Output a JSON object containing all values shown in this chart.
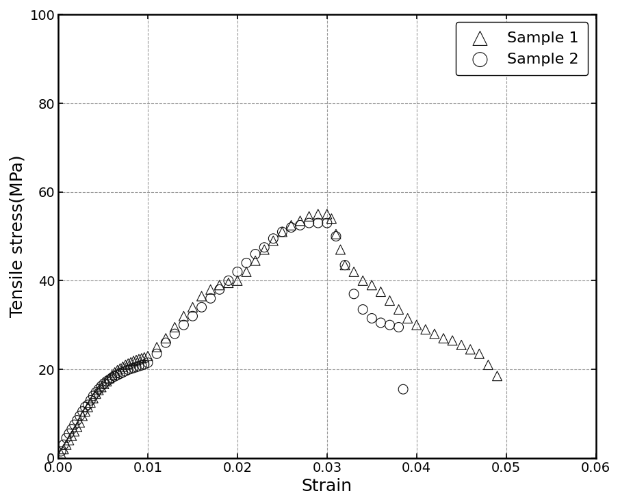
{
  "title": "",
  "xlabel": "Strain",
  "ylabel": "Tensile stress(MPa)",
  "xlim": [
    0.0,
    0.06
  ],
  "ylim": [
    0,
    100
  ],
  "xticks": [
    0.0,
    0.01,
    0.02,
    0.03,
    0.04,
    0.05,
    0.06
  ],
  "yticks": [
    0,
    20,
    40,
    60,
    80,
    100
  ],
  "grid_color": "#999999",
  "background_color": "#ffffff",
  "legend_labels": [
    "Sample 1",
    "Sample 2"
  ],
  "marker1": "^",
  "marker2": "o",
  "markersize": 5,
  "sample1_x": [
    0.0003,
    0.0006,
    0.0009,
    0.0012,
    0.0015,
    0.0018,
    0.0021,
    0.0024,
    0.0027,
    0.003,
    0.0033,
    0.0036,
    0.0039,
    0.0042,
    0.0045,
    0.0048,
    0.0051,
    0.0054,
    0.0057,
    0.006,
    0.0063,
    0.0066,
    0.0069,
    0.0072,
    0.0075,
    0.0078,
    0.0081,
    0.0084,
    0.0087,
    0.009,
    0.0093,
    0.0096,
    0.01,
    0.011,
    0.012,
    0.013,
    0.014,
    0.015,
    0.016,
    0.017,
    0.018,
    0.019,
    0.02,
    0.021,
    0.022,
    0.023,
    0.024,
    0.025,
    0.026,
    0.027,
    0.028,
    0.029,
    0.03,
    0.0305,
    0.031,
    0.0315,
    0.032,
    0.033,
    0.034,
    0.035,
    0.036,
    0.037,
    0.038,
    0.039,
    0.04,
    0.041,
    0.042,
    0.043,
    0.044,
    0.045,
    0.046,
    0.047,
    0.048,
    0.049
  ],
  "sample1_y": [
    1.0,
    2.0,
    3.0,
    4.0,
    5.0,
    6.0,
    7.0,
    8.0,
    9.5,
    10.5,
    11.5,
    12.5,
    13.5,
    14.5,
    15.3,
    16.0,
    16.7,
    17.3,
    18.0,
    18.7,
    19.3,
    19.8,
    20.2,
    20.6,
    21.0,
    21.3,
    21.6,
    21.9,
    22.1,
    22.3,
    22.5,
    22.7,
    23.0,
    25.0,
    27.0,
    29.5,
    32.0,
    34.0,
    36.5,
    38.0,
    39.0,
    39.5,
    40.0,
    42.0,
    44.5,
    47.0,
    49.0,
    51.0,
    52.5,
    53.5,
    54.5,
    55.0,
    55.0,
    54.0,
    50.5,
    47.0,
    43.5,
    42.0,
    40.0,
    39.0,
    37.5,
    35.5,
    33.5,
    31.5,
    30.0,
    29.0,
    28.0,
    27.0,
    26.5,
    25.5,
    24.5,
    23.5,
    21.0,
    18.5
  ],
  "sample2_x": [
    0.0003,
    0.0006,
    0.0009,
    0.0012,
    0.0015,
    0.0018,
    0.0021,
    0.0024,
    0.0027,
    0.003,
    0.0033,
    0.0036,
    0.0039,
    0.0042,
    0.0045,
    0.0048,
    0.0051,
    0.0054,
    0.0057,
    0.006,
    0.0063,
    0.0066,
    0.0069,
    0.0072,
    0.0075,
    0.0078,
    0.0081,
    0.0084,
    0.0087,
    0.009,
    0.0093,
    0.0096,
    0.01,
    0.011,
    0.012,
    0.013,
    0.014,
    0.015,
    0.016,
    0.017,
    0.018,
    0.019,
    0.02,
    0.021,
    0.022,
    0.023,
    0.024,
    0.025,
    0.026,
    0.027,
    0.028,
    0.029,
    0.03,
    0.031,
    0.032,
    0.033,
    0.034,
    0.035,
    0.036,
    0.037,
    0.038,
    0.0385
  ],
  "sample2_y": [
    1.5,
    3.0,
    4.5,
    5.5,
    6.5,
    7.5,
    8.5,
    9.5,
    10.5,
    11.5,
    12.0,
    13.0,
    14.0,
    14.8,
    15.5,
    16.2,
    16.8,
    17.3,
    17.7,
    18.1,
    18.4,
    18.7,
    19.0,
    19.3,
    19.6,
    19.9,
    20.1,
    20.3,
    20.5,
    20.7,
    20.9,
    21.1,
    21.5,
    23.5,
    26.0,
    28.0,
    30.0,
    32.0,
    34.0,
    36.0,
    38.0,
    40.0,
    42.0,
    44.0,
    46.0,
    47.5,
    49.5,
    51.0,
    52.0,
    52.5,
    53.0,
    53.0,
    53.0,
    50.0,
    43.5,
    37.0,
    33.5,
    31.5,
    30.5,
    30.0,
    29.5,
    15.5
  ]
}
